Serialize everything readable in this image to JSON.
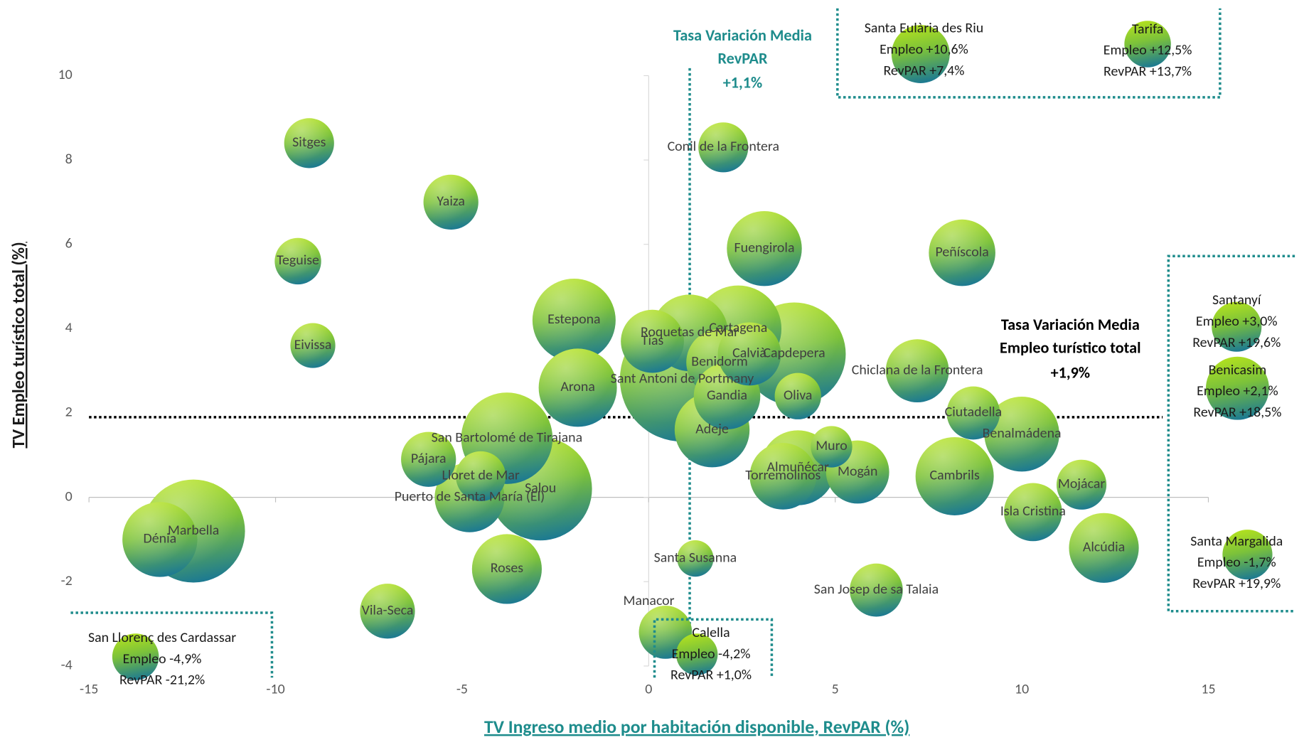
{
  "chart_data": {
    "type": "bubble",
    "x_label": "TV Ingreso medio por habitación disponible, RevPAR (%)",
    "y_label": "TV Empleo turístico total  (%)",
    "xlim": [
      -15,
      15
    ],
    "xticks": [
      -15,
      -10,
      -5,
      0,
      5,
      10,
      15
    ],
    "ylim": [
      -4,
      10
    ],
    "yticks": [
      -4,
      -2,
      0,
      2,
      4,
      6,
      8,
      10
    ],
    "names": [
      "Sitges",
      "Yaiza",
      "Teguise",
      "Eivissa",
      "Conil de la Frontera",
      "Fuengirola",
      "Peñíscola",
      "Estepona",
      "Arona",
      "Cartagena",
      "Roquetas de Mar",
      "Tías",
      "Calvià",
      "Capdepera",
      "Sant Antoni de Portmany",
      "Benidorm",
      "Gandia",
      "Oliva",
      "Chiclana de la Frontera",
      "Ciutadella",
      "Benalmádena",
      "Adeje",
      "Muro",
      "Almuñécar",
      "Torremolinos",
      "Mogán",
      "Cambrils",
      "Mojácar",
      "Isla Cristina",
      "Alcúdia",
      "San Bartolomé de Tirajana",
      "Salou",
      "Puerto de Santa María (El)",
      "Pájara",
      "Lloret de Mar",
      "Marbella",
      "Dénia",
      "Roses",
      "Vila-Seca",
      "Santa Susanna",
      "San Josep de sa Talaia",
      "Manacor"
    ],
    "x": [
      -9.1,
      -5.3,
      -9.4,
      -9.0,
      2.0,
      3.1,
      8.4,
      -2.0,
      -1.9,
      2.4,
      1.1,
      0.1,
      2.7,
      3.9,
      0.9,
      1.9,
      2.1,
      4.0,
      7.2,
      8.7,
      10.0,
      1.7,
      4.9,
      4.0,
      3.6,
      5.6,
      8.2,
      11.6,
      10.3,
      12.2,
      -3.8,
      -2.9,
      -4.8,
      -5.9,
      -4.5,
      -12.2,
      -13.1,
      -3.8,
      -7.0,
      1.25,
      6.1,
      0.45
    ],
    "y": [
      8.4,
      7.0,
      5.6,
      3.6,
      8.3,
      5.9,
      5.8,
      4.2,
      2.6,
      4.0,
      3.9,
      3.7,
      3.4,
      3.4,
      2.8,
      3.2,
      2.4,
      2.4,
      3.0,
      2.0,
      1.5,
      1.6,
      1.2,
      0.7,
      0.5,
      0.6,
      0.5,
      0.3,
      -0.35,
      -1.2,
      1.4,
      0.2,
      0.0,
      0.9,
      0.5,
      -0.8,
      -1.0,
      -1.7,
      -2.7,
      -1.45,
      -2.2,
      -3.2
    ],
    "sizes": [
      90,
      109,
      78,
      73,
      90,
      203,
      160,
      250,
      221,
      270,
      212,
      144,
      144,
      384,
      562,
      160,
      160,
      78,
      144,
      102,
      203,
      203,
      62,
      203,
      160,
      144,
      221,
      90,
      122,
      176,
      302,
      384,
      176,
      109,
      90,
      384,
      203,
      176,
      109,
      48,
      102,
      102
    ],
    "reference_lines": [
      {
        "axis": "x",
        "value": 1.1,
        "label_lines": [
          "Tasa Variación Media",
          "RevPAR"
        ],
        "value_label": "+1,1%"
      },
      {
        "axis": "y",
        "value": 1.9,
        "label_lines": [
          "Tasa Variación Media",
          "Empleo turístico total"
        ],
        "value_label": "+1,9%"
      }
    ],
    "callouts": [
      {
        "name": "San Llorenç des Cardassar",
        "empleo": "Empleo -4,9%",
        "revpar": "RevPAR -21,2%"
      },
      {
        "name": "Calella",
        "empleo": "Empleo -4,2%",
        "revpar": "RevPAR +1,0%"
      },
      {
        "name": "Santa Eulària des Riu",
        "empleo": "Empleo +10,6%",
        "revpar": "RevPAR +7,4%"
      },
      {
        "name": "Tarifa",
        "empleo": "Empleo +12,5%",
        "revpar": "RevPAR +13,7%"
      },
      {
        "name": "Santanyí",
        "empleo": "Empleo +3,0%",
        "revpar": "RevPAR +19,6%"
      },
      {
        "name": "Benicasim",
        "empleo": "Empleo +2,1%",
        "revpar": "RevPAR +18,5%"
      },
      {
        "name": "Santa Margalida",
        "empleo": "Empleo -1,7%",
        "revpar": "RevPAR +19,9%"
      }
    ]
  }
}
